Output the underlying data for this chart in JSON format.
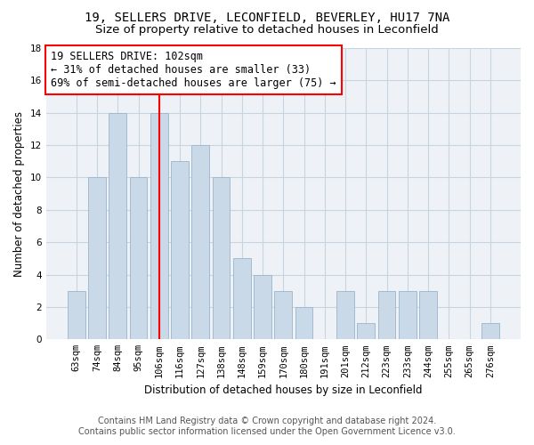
{
  "title": "19, SELLERS DRIVE, LECONFIELD, BEVERLEY, HU17 7NA",
  "subtitle": "Size of property relative to detached houses in Leconfield",
  "xlabel": "Distribution of detached houses by size in Leconfield",
  "ylabel": "Number of detached properties",
  "bar_labels": [
    "63sqm",
    "74sqm",
    "84sqm",
    "95sqm",
    "106sqm",
    "116sqm",
    "127sqm",
    "138sqm",
    "148sqm",
    "159sqm",
    "170sqm",
    "180sqm",
    "191sqm",
    "201sqm",
    "212sqm",
    "223sqm",
    "233sqm",
    "244sqm",
    "255sqm",
    "265sqm",
    "276sqm"
  ],
  "bar_values": [
    3,
    10,
    14,
    10,
    14,
    11,
    12,
    10,
    5,
    4,
    3,
    2,
    0,
    3,
    1,
    3,
    3,
    3,
    0,
    0,
    1
  ],
  "bar_color": "#c9d9e8",
  "bar_edge_color": "#9ab5cc",
  "vline_x_index": 4,
  "vline_color": "red",
  "annotation_title": "19 SELLERS DRIVE: 102sqm",
  "annotation_line1": "← 31% of detached houses are smaller (33)",
  "annotation_line2": "69% of semi-detached houses are larger (75) →",
  "annotation_box_color": "red",
  "ylim": [
    0,
    18
  ],
  "yticks": [
    0,
    2,
    4,
    6,
    8,
    10,
    12,
    14,
    16,
    18
  ],
  "footer1": "Contains HM Land Registry data © Crown copyright and database right 2024.",
  "footer2": "Contains public sector information licensed under the Open Government Licence v3.0.",
  "bg_color": "#eef2f7",
  "grid_color": "#c8d4e0",
  "title_fontsize": 10,
  "subtitle_fontsize": 9.5,
  "axis_label_fontsize": 8.5,
  "tick_fontsize": 7.5,
  "footer_fontsize": 7.0,
  "annotation_fontsize": 8.5
}
